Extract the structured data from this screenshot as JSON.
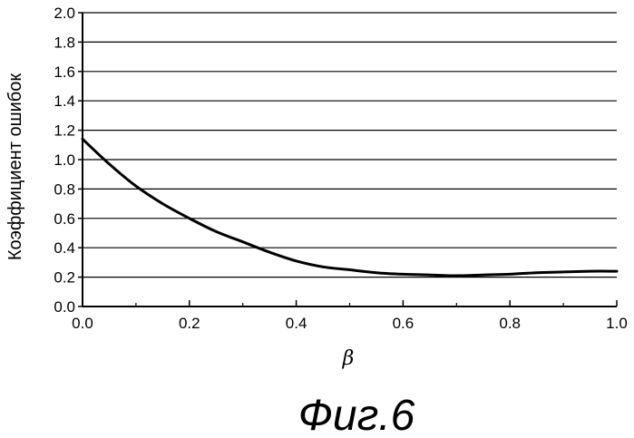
{
  "chart_data": {
    "type": "line",
    "xlabel": "β",
    "ylabel": "Коэффициент ошибок",
    "caption": "Фиг.6",
    "xlim": [
      0.0,
      1.0
    ],
    "ylim": [
      0.0,
      2.0
    ],
    "x_ticks": [
      "0.0",
      "0.2",
      "0.4",
      "0.6",
      "0.8",
      "1.0"
    ],
    "y_ticks": [
      "0.0",
      "0.2",
      "0.4",
      "0.6",
      "0.8",
      "1.0",
      "1.2",
      "1.4",
      "1.6",
      "1.8",
      "2.0"
    ],
    "grid": "horizontal",
    "series": [
      {
        "x": [
          0.0,
          0.05,
          0.1,
          0.15,
          0.2,
          0.25,
          0.3,
          0.35,
          0.4,
          0.45,
          0.5,
          0.55,
          0.6,
          0.65,
          0.7,
          0.75,
          0.8,
          0.85,
          0.9,
          0.95,
          1.0
        ],
        "y": [
          1.14,
          0.97,
          0.82,
          0.7,
          0.6,
          0.51,
          0.44,
          0.37,
          0.31,
          0.27,
          0.25,
          0.23,
          0.22,
          0.215,
          0.21,
          0.215,
          0.22,
          0.23,
          0.235,
          0.24,
          0.24
        ]
      }
    ]
  }
}
